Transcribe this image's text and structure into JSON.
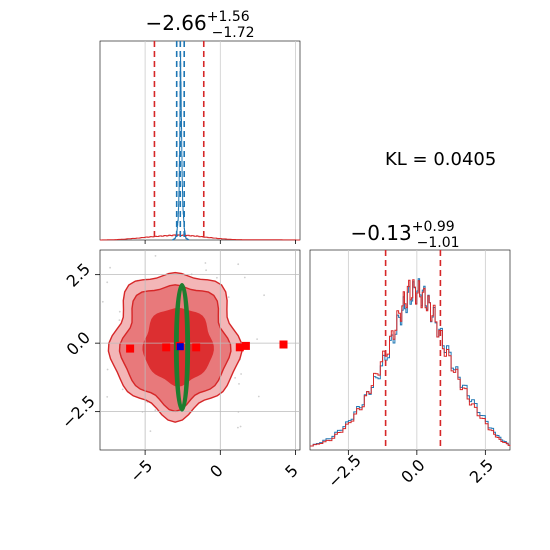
{
  "colors": {
    "red": "#d62728",
    "blue": "#1f77b4",
    "green": "#1e7d2f",
    "dark_blue": "#0000cc",
    "grid": "#cccccc",
    "scatter": "#cfcfcf"
  },
  "annotation": {
    "kl_text": "KL = 0.0405"
  },
  "chart_data": [
    {
      "panel": "hist-x",
      "type": "line",
      "title_main": "−2.66",
      "title_sup": "+1.56",
      "title_sub": "−1.72",
      "xlim": [
        -8.0,
        5.3
      ],
      "grid": true,
      "x_ticks": [
        -5,
        0,
        5
      ],
      "tick_labels_visible": false,
      "quantile_lines": {
        "red": [
          -4.38,
          -2.66,
          -1.1
        ],
        "blue": [
          -2.9,
          -2.66,
          -2.4
        ]
      },
      "series": [
        {
          "color": "red",
          "x": [
            -8.0,
            -7.0,
            -6.5,
            -6.0,
            -5.5,
            -5.0,
            -4.5,
            -4.0,
            -3.5,
            -3.0,
            -2.5,
            -2.0,
            -1.5,
            -1.0,
            -0.5,
            0.0,
            0.5,
            1.0,
            3.5,
            5.3
          ],
          "y": [
            0,
            0.002,
            0.004,
            0.007,
            0.01,
            0.015,
            0.018,
            0.021,
            0.024,
            0.026,
            0.025,
            0.023,
            0.02,
            0.015,
            0.011,
            0.007,
            0.004,
            0.002,
            0.001,
            0
          ]
        },
        {
          "color": "blue",
          "x": [
            -3.2,
            -3.0,
            -2.9,
            -2.8,
            -2.75,
            -2.7,
            -2.65,
            -2.6,
            -2.55,
            -2.5,
            -2.4,
            -2.3,
            -2.1
          ],
          "y": [
            0,
            0.01,
            0.04,
            0.12,
            0.26,
            0.55,
            1.0,
            0.7,
            0.4,
            0.18,
            0.06,
            0.01,
            0
          ]
        }
      ]
    },
    {
      "panel": "joint",
      "type": "scatter",
      "xlim": [
        -8.0,
        5.3
      ],
      "ylim": [
        -3.9,
        3.4
      ],
      "grid": true,
      "x_ticks": [
        -5,
        0,
        5
      ],
      "x_tick_labels": [
        "−5",
        "0",
        "5"
      ],
      "y_ticks": [
        2.5,
        0.0,
        -2.5
      ],
      "y_tick_labels": [
        "2.5",
        "0.0",
        "−2.5"
      ],
      "contours": [
        {
          "level": "outer",
          "cx": -3.0,
          "cy": 0.0,
          "rx": 4.2,
          "ry": 2.6
        },
        {
          "level": "middle",
          "cx": -3.0,
          "cy": -0.05,
          "rx": 3.5,
          "ry": 2.2
        },
        {
          "level": "inner",
          "cx": -2.8,
          "cy": -0.1,
          "rx": 2.3,
          "ry": 1.4
        }
      ],
      "green_ellipses": [
        {
          "cx": -2.55,
          "cy": -0.15,
          "rx": 0.3,
          "ry": 2.2
        },
        {
          "cx": -2.55,
          "cy": -0.15,
          "rx": 0.45,
          "ry": 2.3
        }
      ],
      "red_markers": [
        {
          "x": -6.0,
          "y": -0.2
        },
        {
          "x": -3.6,
          "y": -0.15
        },
        {
          "x": -2.7,
          "y": -0.1
        },
        {
          "x": -1.6,
          "y": -0.15
        },
        {
          "x": 1.3,
          "y": -0.15
        },
        {
          "x": 1.7,
          "y": -0.1
        },
        {
          "x": 4.2,
          "y": -0.05
        }
      ],
      "blue_marker": {
        "x": -2.66,
        "y": -0.13
      }
    },
    {
      "panel": "hist-y",
      "type": "line",
      "title_main": "−0.13",
      "title_sup": "+0.99",
      "title_sub": "−1.01",
      "xlim": [
        -3.9,
        3.4
      ],
      "grid": true,
      "x_ticks": [
        -2.5,
        0.0,
        2.5
      ],
      "x_tick_labels": [
        "−2.5",
        "0.0",
        "2.5"
      ],
      "quantile_lines": {
        "red": [
          -1.14,
          -0.13,
          0.86
        ]
      },
      "series": [
        {
          "color": "blue",
          "x": [
            -3.9,
            -3.2,
            -2.6,
            -2.0,
            -1.5,
            -1.0,
            -0.6,
            -0.3,
            0.0,
            0.3,
            0.6,
            1.0,
            1.5,
            2.0,
            2.6,
            3.0,
            3.4
          ],
          "y": [
            0.02,
            0.06,
            0.13,
            0.24,
            0.36,
            0.52,
            0.68,
            0.77,
            0.8,
            0.76,
            0.66,
            0.52,
            0.36,
            0.24,
            0.12,
            0.06,
            0.02
          ]
        },
        {
          "color": "red",
          "x": [
            -3.9,
            -3.2,
            -2.6,
            -2.0,
            -1.5,
            -1.0,
            -0.6,
            -0.3,
            0.0,
            0.3,
            0.6,
            1.0,
            1.5,
            2.0,
            2.6,
            3.0,
            3.4
          ],
          "y": [
            0.02,
            0.05,
            0.12,
            0.23,
            0.38,
            0.54,
            0.7,
            0.8,
            0.79,
            0.75,
            0.67,
            0.5,
            0.35,
            0.22,
            0.11,
            0.05,
            0.02
          ]
        }
      ]
    }
  ]
}
